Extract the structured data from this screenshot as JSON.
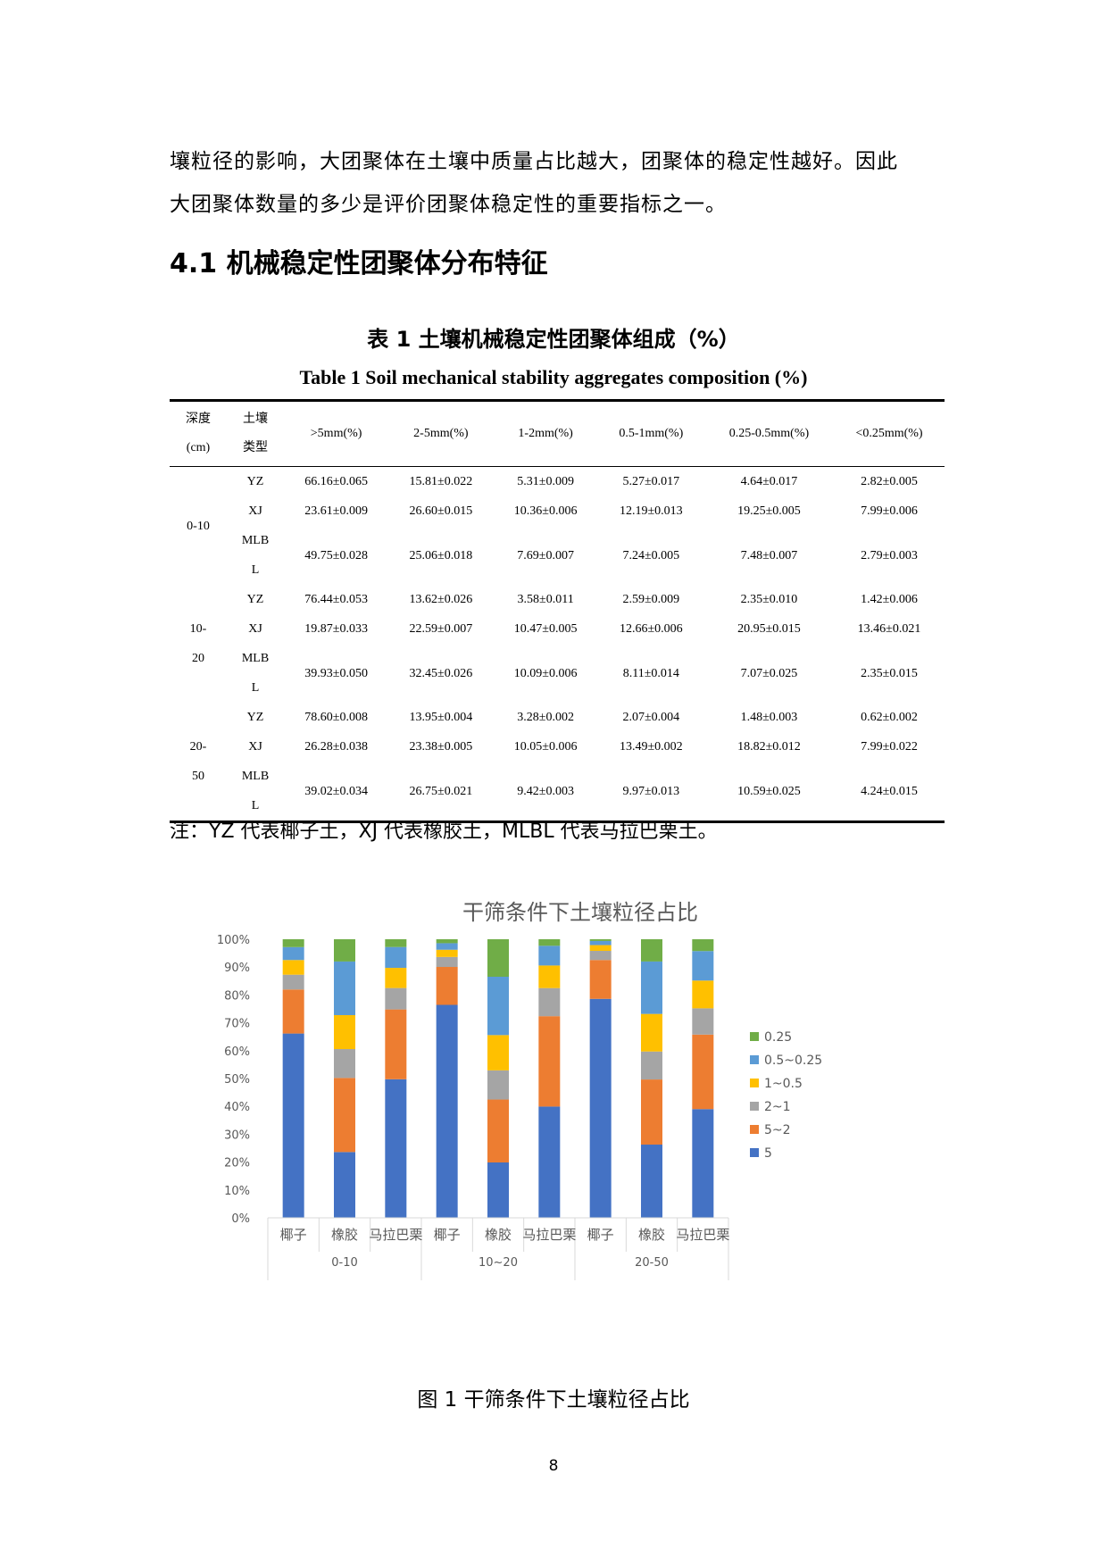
{
  "intro": {
    "line1": "壤粒径的影响，大团聚体在土壤中质量占比越大，团聚体的稳定性越好。因此",
    "line2": "大团聚体数量的多少是评价团聚体稳定性的重要指标之一。"
  },
  "section_title": "4.1 机械稳定性团聚体分布特征",
  "table": {
    "caption_cn": "表 1 土壤机械稳定性团聚体组成（%）",
    "caption_en": "Table 1 Soil mechanical stability aggregates composition (%)",
    "header": {
      "depth": [
        "深度",
        "(cm)"
      ],
      "type": [
        "土壤",
        "类型"
      ],
      "cols": [
        ">5mm(%)",
        "2-5mm(%)",
        "1-2mm(%)",
        "0.5-1mm(%)",
        "0.25-0.5mm(%)",
        "<0.25mm(%)"
      ]
    },
    "groups": [
      {
        "depth": [
          "0-10"
        ],
        "rows": [
          {
            "type": [
              "YZ"
            ],
            "values": [
              "66.16±0.065",
              "15.81±0.022",
              "5.31±0.009",
              "5.27±0.017",
              "4.64±0.017",
              "2.82±0.005"
            ]
          },
          {
            "type": [
              "XJ"
            ],
            "values": [
              "23.61±0.009",
              "26.60±0.015",
              "10.36±0.006",
              "12.19±0.013",
              "19.25±0.005",
              "7.99±0.006"
            ]
          },
          {
            "type": [
              "MLB",
              "L"
            ],
            "values": [
              "49.75±0.028",
              "25.06±0.018",
              "7.69±0.007",
              "7.24±0.005",
              "7.48±0.007",
              "2.79±0.003"
            ]
          }
        ]
      },
      {
        "depth": [
          "10-",
          "20"
        ],
        "rows": [
          {
            "type": [
              "YZ"
            ],
            "values": [
              "76.44±0.053",
              "13.62±0.026",
              "3.58±0.011",
              "2.59±0.009",
              "2.35±0.010",
              "1.42±0.006"
            ]
          },
          {
            "type": [
              "XJ"
            ],
            "values": [
              "19.87±0.033",
              "22.59±0.007",
              "10.47±0.005",
              "12.66±0.006",
              "20.95±0.015",
              "13.46±0.021"
            ]
          },
          {
            "type": [
              "MLB",
              "L"
            ],
            "values": [
              "39.93±0.050",
              "32.45±0.026",
              "10.09±0.006",
              "8.11±0.014",
              "7.07±0.025",
              "2.35±0.015"
            ]
          }
        ]
      },
      {
        "depth": [
          "20-",
          "50"
        ],
        "rows": [
          {
            "type": [
              "YZ"
            ],
            "values": [
              "78.60±0.008",
              "13.95±0.004",
              "3.28±0.002",
              "2.07±0.004",
              "1.48±0.003",
              "0.62±0.002"
            ]
          },
          {
            "type": [
              "XJ"
            ],
            "values": [
              "26.28±0.038",
              "23.38±0.005",
              "10.05±0.006",
              "13.49±0.002",
              "18.82±0.012",
              "7.99±0.022"
            ]
          },
          {
            "type": [
              "MLB",
              "L"
            ],
            "values": [
              "39.02±0.034",
              "26.75±0.021",
              "9.42±0.003",
              "9.97±0.013",
              "10.59±0.025",
              "4.24±0.015"
            ]
          }
        ]
      }
    ]
  },
  "note": "注：YZ 代表椰子土，XJ 代表橡胶土，MLBL 代表马拉巴栗土。",
  "chart_data": {
    "type": "bar",
    "stacked": true,
    "percent_stacked": true,
    "title": "干筛条件下土壤粒径占比",
    "categories": [
      "椰子",
      "橡胶",
      "马拉巴栗",
      "椰子",
      "橡胶",
      "马拉巴栗",
      "椰子",
      "橡胶",
      "马拉巴栗"
    ],
    "groups": [
      {
        "label": "0-10",
        "start": 0,
        "count": 3
      },
      {
        "label": "10~20",
        "start": 3,
        "count": 3
      },
      {
        "label": "20-50",
        "start": 6,
        "count": 3
      }
    ],
    "series": [
      {
        "name": "5",
        "color": "#4472C4",
        "values": [
          66.16,
          23.61,
          49.75,
          76.44,
          19.87,
          39.93,
          78.6,
          26.28,
          39.02
        ]
      },
      {
        "name": "5~2",
        "color": "#ED7D31",
        "values": [
          15.81,
          26.6,
          25.06,
          13.62,
          22.59,
          32.45,
          13.95,
          23.38,
          26.75
        ]
      },
      {
        "name": "2~1",
        "color": "#A5A5A5",
        "values": [
          5.31,
          10.36,
          7.69,
          3.58,
          10.47,
          10.09,
          3.28,
          10.05,
          9.42
        ]
      },
      {
        "name": "1~0.5",
        "color": "#FFC000",
        "values": [
          5.27,
          12.19,
          7.24,
          2.59,
          12.66,
          8.11,
          2.07,
          13.49,
          9.97
        ]
      },
      {
        "name": "0.5~0.25",
        "color": "#5B9BD5",
        "values": [
          4.64,
          19.25,
          7.48,
          2.35,
          20.95,
          7.07,
          1.48,
          18.82,
          10.59
        ]
      },
      {
        "name": "0.25",
        "color": "#70AD47",
        "values": [
          2.82,
          7.99,
          2.79,
          1.42,
          13.46,
          2.35,
          0.62,
          7.99,
          4.24
        ]
      }
    ],
    "legend_order": [
      "0.25",
      "0.5~0.25",
      "1~0.5",
      "2~1",
      "5~2",
      "5"
    ],
    "y_ticks": [
      "0%",
      "10%",
      "20%",
      "30%",
      "40%",
      "50%",
      "60%",
      "70%",
      "80%",
      "90%",
      "100%"
    ],
    "ylim": [
      0,
      100
    ],
    "legend_position": "right",
    "grid": false
  },
  "figure_caption": "图 1 干筛条件下土壤粒径占比",
  "page_number": "8"
}
